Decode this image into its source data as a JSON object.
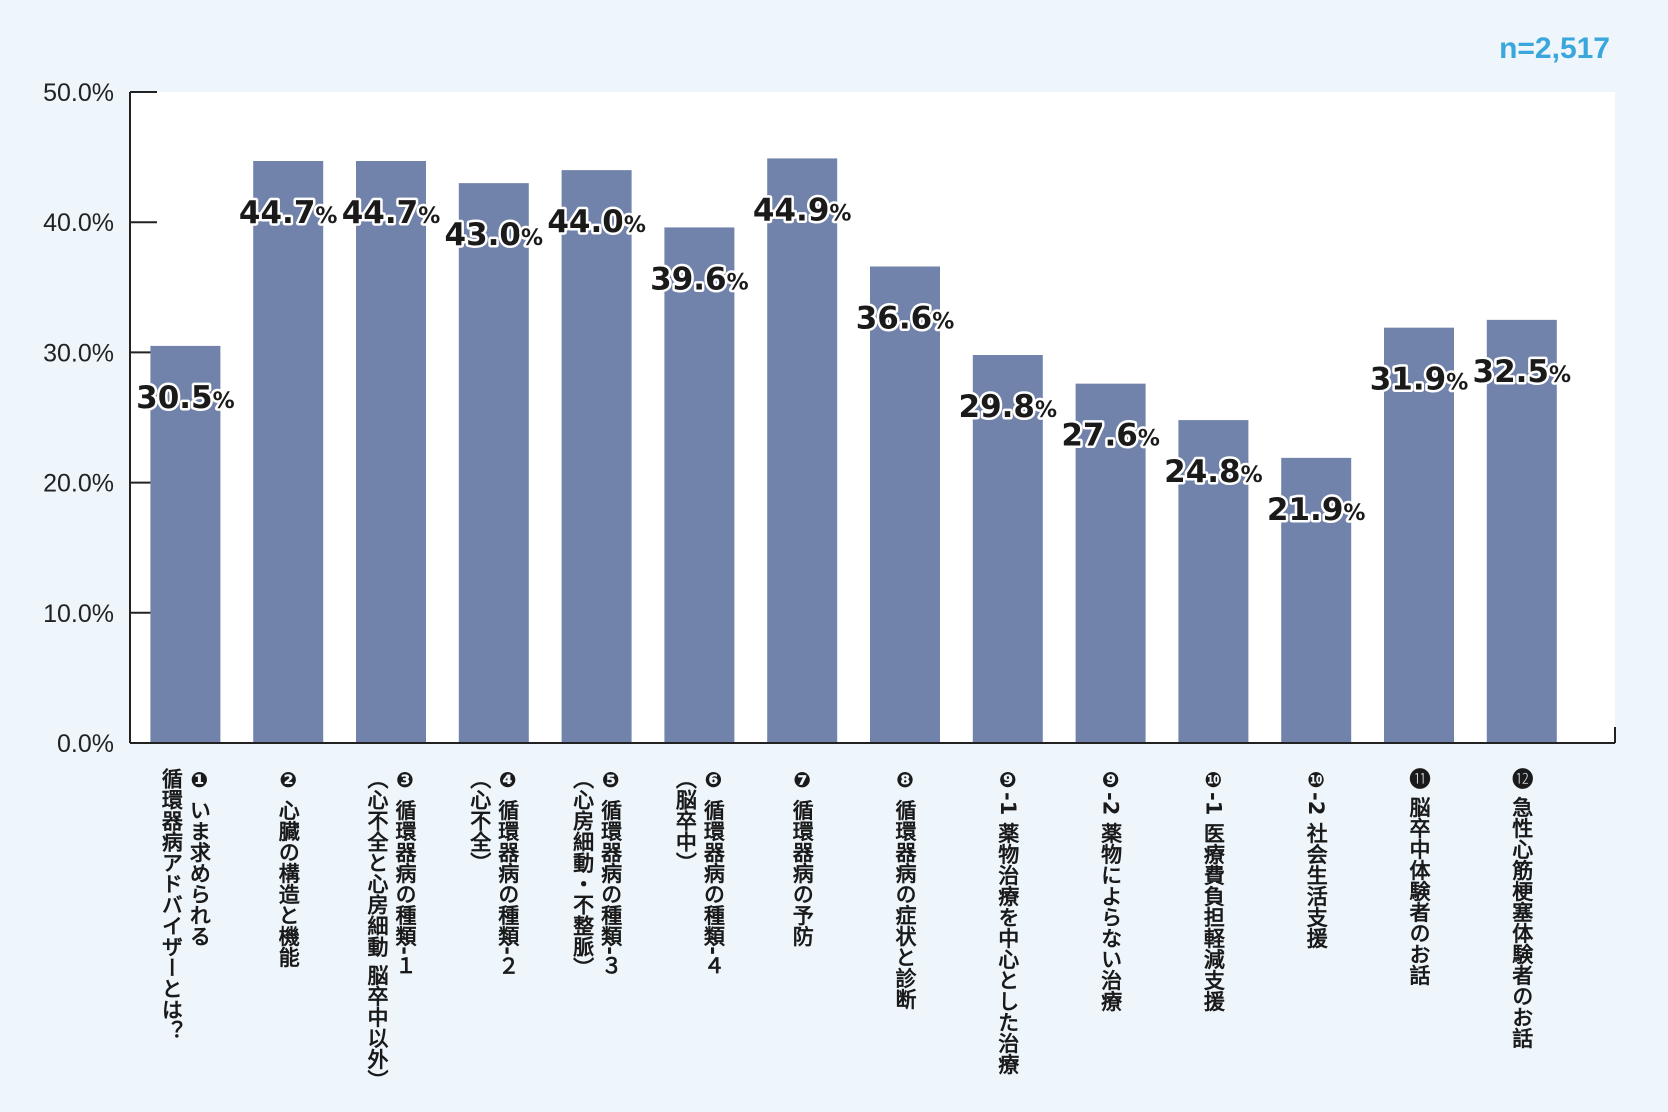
{
  "chart_data": {
    "type": "bar",
    "sample_size": "n=2,517",
    "y_ticks": [
      "0.0%",
      "10.0%",
      "20.0%",
      "30.0%",
      "40.0%",
      "50.0%"
    ],
    "ylim": [
      0,
      50
    ],
    "bar_color": "#7283ab",
    "accent_color": "#3aa6dc",
    "plot_background": "#ffffff",
    "categories": [
      {
        "lines": [
          "❶ いま求められる",
          "循環器病アドバイザーとは？"
        ]
      },
      {
        "lines": [
          "❷ 心臓の構造と機能"
        ]
      },
      {
        "lines": [
          "❸ 循環器病の種類‐１",
          "（心不全と心房細動 脳卒中以外）"
        ]
      },
      {
        "lines": [
          "❹ 循環器病の種類‐２",
          "（心不全）"
        ]
      },
      {
        "lines": [
          "❺ 循環器病の種類‐３",
          "（心房細動・不整脈）"
        ]
      },
      {
        "lines": [
          "❻ 循環器病の種類‐４",
          "（脳卒中）"
        ]
      },
      {
        "lines": [
          "❼ 循環器病の予防"
        ]
      },
      {
        "lines": [
          "❽ 循環器病の症状と診断"
        ]
      },
      {
        "lines": [
          "❾-1 薬物治療を中心とした治療"
        ]
      },
      {
        "lines": [
          "❾-2 薬物によらない治療"
        ]
      },
      {
        "lines": [
          "❿-1 医療費負担軽減支援"
        ]
      },
      {
        "lines": [
          "❿-2 社会生活支援"
        ]
      },
      {
        "lines": [
          "⓫ 脳卒中体験者のお話"
        ]
      },
      {
        "lines": [
          "⓬ 急性心筋梗塞体験者のお話"
        ]
      }
    ],
    "values": [
      30.5,
      44.7,
      44.7,
      43.0,
      44.0,
      39.6,
      44.9,
      36.6,
      29.8,
      27.6,
      24.8,
      21.9,
      31.9,
      32.5
    ],
    "value_labels": [
      "30.5",
      "44.7",
      "44.7",
      "43.0",
      "44.0",
      "39.6",
      "44.9",
      "36.6",
      "29.8",
      "27.6",
      "24.8",
      "21.9",
      "31.9",
      "32.5"
    ],
    "value_unit": "%"
  }
}
